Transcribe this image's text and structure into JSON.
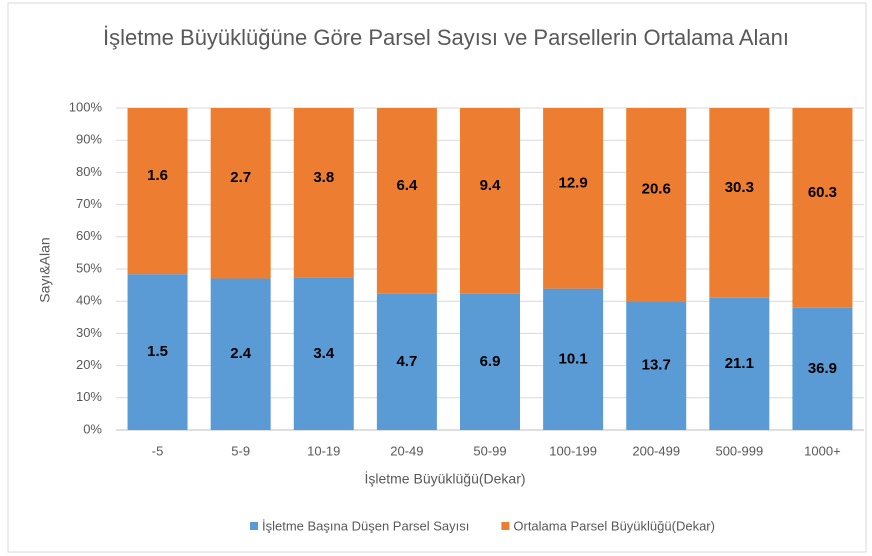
{
  "chart_data": {
    "type": "bar",
    "stacked": "percent",
    "title": "İşletme Büyüklüğüne Göre Parsel Sayısı ve Parsellerin Ortalama Alanı",
    "x_label": "İşletme Büyüklüğü(Dekar)",
    "y_label": "Sayı&Alan",
    "categories": [
      "-5",
      "5-9",
      "10-19",
      "20-49",
      "50-99",
      "100-199",
      "200-499",
      "500-999",
      "1000+"
    ],
    "series": [
      {
        "name": "İşletme Başına Düşen Parsel Sayısı",
        "color": "#5b9bd5",
        "values": [
          1.5,
          2.4,
          3.4,
          4.7,
          6.9,
          10.1,
          13.7,
          21.1,
          36.9
        ]
      },
      {
        "name": "Ortalama Parsel Büyüklüğü(Dekar)",
        "color": "#ed7d31",
        "values": [
          1.6,
          2.7,
          3.8,
          6.4,
          9.4,
          12.9,
          20.6,
          30.3,
          60.3
        ]
      }
    ],
    "ylim": [
      0,
      100
    ],
    "yticks": [
      {
        "value": 0,
        "label": "0%"
      },
      {
        "value": 10,
        "label": "10%"
      },
      {
        "value": 20,
        "label": "20%"
      },
      {
        "value": 30,
        "label": "30%"
      },
      {
        "value": 40,
        "label": "40%"
      },
      {
        "value": 50,
        "label": "50%"
      },
      {
        "value": 60,
        "label": "60%"
      },
      {
        "value": 70,
        "label": "70%"
      },
      {
        "value": 80,
        "label": "80%"
      },
      {
        "value": 90,
        "label": "90%"
      },
      {
        "value": 100,
        "label": "100%"
      }
    ],
    "grid": true,
    "legend": "bottom"
  }
}
